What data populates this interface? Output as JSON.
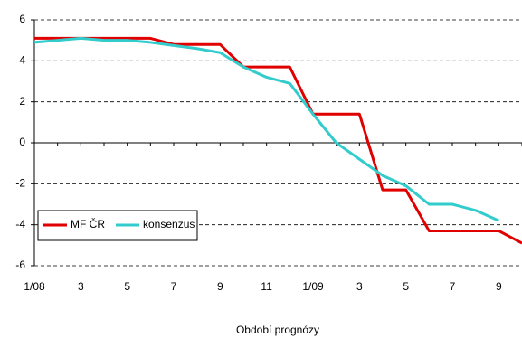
{
  "chart_data": {
    "type": "line",
    "x_label": "Období prognózy",
    "categories": [
      "1/08",
      null,
      "3",
      null,
      "5",
      null,
      "7",
      null,
      "9",
      null,
      "11",
      null,
      "1/09",
      null,
      "3",
      null,
      "5",
      null,
      "7",
      null,
      "9",
      null
    ],
    "series": [
      {
        "name": "MF ČR",
        "color": "#e00000",
        "values": [
          5.1,
          5.1,
          5.1,
          5.1,
          5.1,
          5.1,
          4.8,
          4.8,
          4.8,
          3.7,
          3.7,
          3.7,
          1.4,
          1.4,
          1.4,
          -2.3,
          -2.3,
          -4.3,
          -4.3,
          -4.3,
          -4.3,
          -4.9
        ]
      },
      {
        "name": "konsenzus",
        "color": "#33cccc",
        "values": [
          4.9,
          5.0,
          5.1,
          5.0,
          5.0,
          4.9,
          4.75,
          4.6,
          4.4,
          3.7,
          3.2,
          2.9,
          1.4,
          0.0,
          -0.8,
          -1.6,
          -2.1,
          -3.0,
          -3.0,
          -3.3,
          -3.8,
          null
        ]
      }
    ],
    "ylim": [
      -6,
      6
    ],
    "yticks": [
      -6,
      -4,
      -2,
      0,
      2,
      4,
      6
    ],
    "grid": true
  }
}
